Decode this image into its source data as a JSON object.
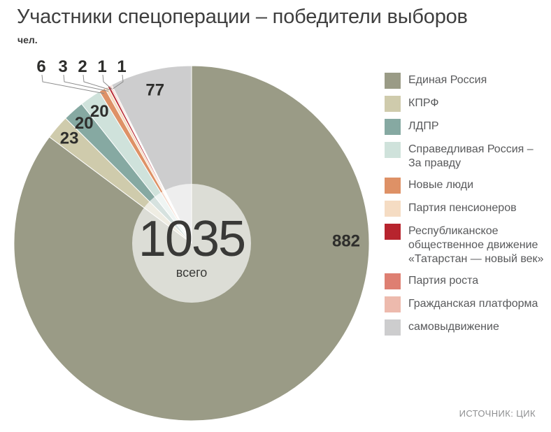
{
  "header": {
    "title": "Участники спецоперации – победители выборов",
    "unit": "чел."
  },
  "donut_center": {
    "total": "1035",
    "caption": "всего"
  },
  "source": "ИСТОЧНИК: ЦИК",
  "chart_data": {
    "type": "pie",
    "title": "Участники спецоперации – победители выборов",
    "unit": "чел.",
    "total": 1035,
    "total_caption": "всего",
    "direction": "clockwise",
    "start_angle_deg": 0,
    "legend_position": "right",
    "source": "ИСТОЧНИК: ЦИК",
    "series": [
      {
        "name": "Единая Россия",
        "legend_lines": [
          "Единая Россия"
        ],
        "value": 882,
        "color": "#9a9b86"
      },
      {
        "name": "КПРФ",
        "legend_lines": [
          "КПРФ"
        ],
        "value": 23,
        "color": "#cfcbac"
      },
      {
        "name": "ЛДПР",
        "legend_lines": [
          "ЛДПР"
        ],
        "value": 20,
        "color": "#86a9a2"
      },
      {
        "name": "Справедливая Россия – За правду",
        "legend_lines": [
          "Справедливая Россия –",
          "За правду"
        ],
        "value": 20,
        "color": "#cfe2db"
      },
      {
        "name": "Новые люди",
        "legend_lines": [
          "Новые люди"
        ],
        "value": 6,
        "color": "#de9166"
      },
      {
        "name": "Партия пенсионеров",
        "legend_lines": [
          "Партия пенсионеров"
        ],
        "value": 3,
        "color": "#f5dcc3"
      },
      {
        "name": "Республиканское общественное движение «Татарстан — новый век»",
        "legend_lines": [
          "Республиканское",
          "общественное движение",
          "«Татарстан — новый век»"
        ],
        "value": 2,
        "color": "#b7242e"
      },
      {
        "name": "Партия роста",
        "legend_lines": [
          "Партия роста"
        ],
        "value": 1,
        "color": "#de7f72"
      },
      {
        "name": "Гражданская платформа",
        "legend_lines": [
          "Гражданская платформа"
        ],
        "value": 1,
        "color": "#edbaad"
      },
      {
        "name": "самовыдвижение",
        "legend_lines": [
          "самовыдвижение"
        ],
        "value": 77,
        "color": "#cdcdce"
      }
    ]
  }
}
